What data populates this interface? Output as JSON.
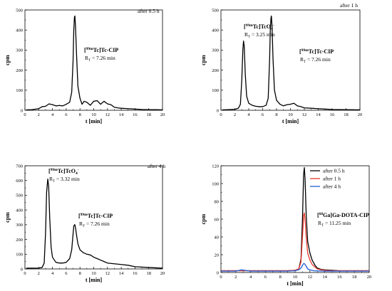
{
  "chart_data": [
    {
      "type": "line",
      "note": "after 0.5 h",
      "xlabel": "t [min]",
      "ylabel": "cpm",
      "xlim": [
        0,
        20
      ],
      "ylim": [
        0,
        500
      ],
      "xticks": [
        "0",
        "2",
        "4",
        "6",
        "8",
        "10",
        "12",
        "14",
        "16",
        "18",
        "20"
      ],
      "yticks": [
        "0",
        "100",
        "200",
        "300",
        "400",
        "500"
      ],
      "peaks": [
        {
          "label": "[99mTc]Tc-CIP",
          "rt": "R",
          "sub": "T",
          "rt_text": " = 7.26 min"
        }
      ],
      "series": [
        {
          "color": "#000000",
          "x": [
            0.2,
            1,
            2,
            2.5,
            3,
            3.5,
            4,
            4.5,
            5,
            5.5,
            6,
            6.5,
            6.8,
            7.0,
            7.1,
            7.2,
            7.26,
            7.35,
            7.5,
            7.7,
            8.0,
            8.3,
            8.6,
            9,
            9.5,
            10,
            10.5,
            11,
            11.5,
            12,
            12.5,
            13,
            13.5,
            14,
            15,
            16,
            17,
            18,
            19,
            20
          ],
          "y": [
            2,
            3,
            8,
            18,
            20,
            32,
            28,
            22,
            24,
            22,
            30,
            40,
            90,
            250,
            400,
            465,
            470,
            420,
            280,
            120,
            60,
            30,
            45,
            40,
            25,
            45,
            48,
            30,
            45,
            32,
            28,
            15,
            12,
            10,
            8,
            6,
            4,
            3,
            3,
            2
          ]
        }
      ]
    },
    {
      "type": "line",
      "note": "after 1 h",
      "xlabel": "t [min]",
      "ylabel": "cpm",
      "xlim": [
        0,
        20
      ],
      "ylim": [
        0,
        500
      ],
      "xticks": [
        "0",
        "2",
        "4",
        "6",
        "8",
        "10",
        "12",
        "14",
        "16",
        "18",
        "20"
      ],
      "yticks": [
        "0",
        "100",
        "200",
        "300",
        "400",
        "500"
      ],
      "peaks": [
        {
          "label": "[99mTc]TcO4-",
          "rt": "R",
          "sub": "T",
          "rt_text": " = 3.25 min"
        },
        {
          "label": "[99mTc]Tc-CIP",
          "rt": "R",
          "sub": "T",
          "rt_text": " = 7.26 min"
        }
      ],
      "series": [
        {
          "color": "#000000",
          "x": [
            0.2,
            1,
            2,
            2.5,
            2.8,
            3.0,
            3.15,
            3.25,
            3.35,
            3.5,
            3.7,
            4,
            4.5,
            5,
            5.5,
            6,
            6.5,
            6.8,
            7.0,
            7.1,
            7.2,
            7.26,
            7.35,
            7.5,
            7.7,
            8,
            8.5,
            9,
            9.5,
            10,
            10.5,
            11,
            11.5,
            12,
            13,
            14,
            15,
            16,
            18,
            20
          ],
          "y": [
            2,
            3,
            5,
            10,
            30,
            150,
            300,
            345,
            320,
            180,
            70,
            35,
            25,
            20,
            18,
            18,
            25,
            60,
            250,
            400,
            460,
            470,
            420,
            250,
            100,
            50,
            30,
            22,
            28,
            30,
            35,
            22,
            18,
            12,
            10,
            8,
            6,
            4,
            3,
            2
          ]
        }
      ]
    },
    {
      "type": "line",
      "note": "after 4 h",
      "xlabel": "t [min]",
      "ylabel": "cpm",
      "xlim": [
        0,
        20
      ],
      "ylim": [
        0,
        700
      ],
      "xticks": [
        "0",
        "2",
        "4",
        "6",
        "8",
        "10",
        "12",
        "14",
        "16",
        "18",
        "20"
      ],
      "yticks": [
        "0",
        "100",
        "200",
        "300",
        "400",
        "500",
        "600",
        "700"
      ],
      "peaks": [
        {
          "label": "[99mTc]TcO4-",
          "rt": "R",
          "sub": "T",
          "rt_text": " = 3.32 min"
        },
        {
          "label": "[99mTc]Tc-CIP",
          "rt": "R",
          "sub": "T",
          "rt_text": " = 7.26 min"
        }
      ],
      "series": [
        {
          "color": "#000000",
          "x": [
            0.2,
            1,
            2,
            2.5,
            2.8,
            3.0,
            3.15,
            3.32,
            3.45,
            3.6,
            3.8,
            4,
            4.5,
            5,
            5.5,
            6,
            6.5,
            6.8,
            7.0,
            7.1,
            7.2,
            7.26,
            7.35,
            7.5,
            7.7,
            8,
            8.5,
            9,
            9.5,
            10,
            10.5,
            11,
            11.5,
            12,
            13,
            14,
            15,
            16,
            18,
            20
          ],
          "y": [
            5,
            5,
            6,
            10,
            40,
            250,
            520,
            610,
            560,
            350,
            150,
            80,
            45,
            40,
            40,
            45,
            70,
            130,
            240,
            290,
            300,
            300,
            280,
            230,
            170,
            130,
            110,
            100,
            95,
            80,
            70,
            60,
            50,
            40,
            35,
            30,
            25,
            15,
            10,
            5
          ]
        }
      ]
    },
    {
      "type": "line",
      "xlabel": "t [min]",
      "ylabel": "cpm",
      "xlim": [
        0,
        20
      ],
      "ylim": [
        0,
        120
      ],
      "xticks": [
        "0",
        "2",
        "4",
        "6",
        "8",
        "10",
        "12",
        "14",
        "16",
        "18",
        "20"
      ],
      "yticks": [
        "0",
        "20",
        "40",
        "60",
        "80",
        "100",
        "120"
      ],
      "legend": "top-right",
      "peaks": [
        {
          "label": "[68Ga]Ga-DOTA-CIP",
          "rt": "R",
          "sub": "T",
          "rt_text": " = 11.25 min"
        }
      ],
      "series": [
        {
          "name": "after 0.5 h",
          "color": "#000000",
          "x": [
            0,
            2,
            4,
            6,
            8,
            9,
            10,
            10.5,
            10.8,
            11.0,
            11.15,
            11.25,
            11.35,
            11.5,
            11.7,
            12.0,
            12.3,
            12.7,
            13,
            13.5,
            14,
            15,
            16,
            18,
            20
          ],
          "y": [
            2,
            2,
            2,
            2,
            2,
            2,
            2.5,
            4,
            15,
            60,
            110,
            118,
            105,
            65,
            35,
            22,
            14,
            8,
            5,
            3.5,
            3,
            2.5,
            2,
            2,
            2
          ]
        },
        {
          "name": "after 1 h",
          "color": "#e8382f",
          "x": [
            0,
            2,
            4,
            6,
            8,
            9,
            10,
            10.5,
            10.8,
            11.0,
            11.15,
            11.25,
            11.35,
            11.5,
            11.7,
            12.0,
            12.3,
            12.7,
            13,
            13.5,
            14,
            15,
            16,
            18,
            20
          ],
          "y": [
            2,
            2,
            2,
            2,
            2,
            2,
            2.5,
            4,
            12,
            40,
            64,
            67,
            60,
            40,
            22,
            14,
            9,
            6,
            4,
            3,
            2.5,
            2,
            2,
            2,
            2
          ]
        },
        {
          "name": "after 4 h",
          "color": "#1f5fd8",
          "x": [
            0,
            2,
            2.8,
            4,
            6,
            8,
            9,
            10,
            10.5,
            10.8,
            11.0,
            11.15,
            11.25,
            11.35,
            11.5,
            11.7,
            12.0,
            12.5,
            13,
            14,
            15,
            16,
            18,
            20
          ],
          "y": [
            1.5,
            1.5,
            3,
            1.5,
            1.5,
            1.5,
            1.5,
            2,
            3,
            5,
            8,
            10,
            10,
            9,
            7,
            4,
            3,
            2,
            1.8,
            1.5,
            1.5,
            1.5,
            1.5,
            1.5
          ]
        }
      ]
    }
  ]
}
